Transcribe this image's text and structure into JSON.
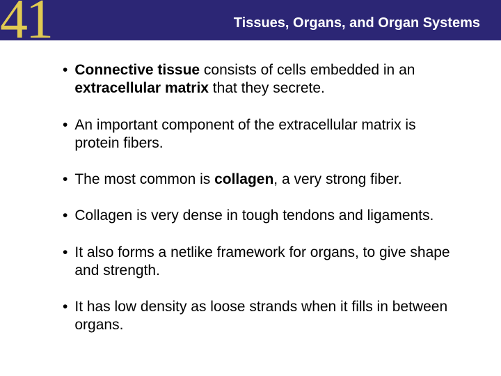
{
  "header": {
    "chapter_number": "41",
    "title": "Tissues, Organs, and Organ Systems",
    "bg_color": "#2c2675",
    "number_color": "#e0ca52",
    "title_color": "#ffffff"
  },
  "body": {
    "text_color": "#000000",
    "bg_color": "#ffffff",
    "font_size_pt": 16,
    "bullets": [
      {
        "runs": [
          {
            "t": "Connective tissue",
            "bold": true
          },
          {
            "t": " consists of cells embedded in an ",
            "bold": false
          },
          {
            "t": "extracellular matrix",
            "bold": true
          },
          {
            "t": " that they secrete.",
            "bold": false
          }
        ]
      },
      {
        "runs": [
          {
            "t": "An important component of the extracellular matrix is protein fibers.",
            "bold": false
          }
        ]
      },
      {
        "runs": [
          {
            "t": "The most common is ",
            "bold": false
          },
          {
            "t": "collagen",
            "bold": true
          },
          {
            "t": ", a very strong fiber.",
            "bold": false
          }
        ]
      },
      {
        "runs": [
          {
            "t": "Collagen is very dense in tough tendons and ligaments.",
            "bold": false
          }
        ]
      },
      {
        "runs": [
          {
            "t": "It also forms a netlike framework for organs, to give shape and strength.",
            "bold": false
          }
        ]
      },
      {
        "runs": [
          {
            "t": "It has low density as loose strands when it fills in between organs.",
            "bold": false
          }
        ]
      }
    ]
  }
}
